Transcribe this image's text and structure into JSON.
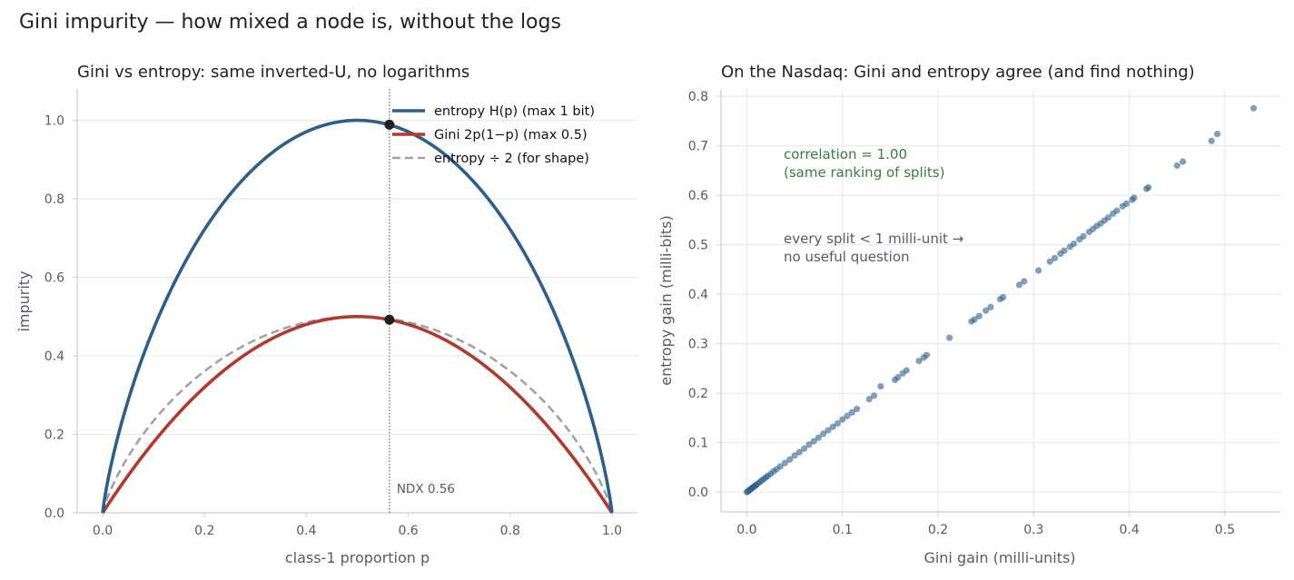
{
  "figure_title": "Gini impurity — how mixed a node is, without the logs",
  "chart_data": [
    {
      "type": "line",
      "title": "Gini vs entropy: same inverted-U, no logarithms",
      "xlabel": "class-1 proportion p",
      "ylabel": "impurity",
      "xlim": [
        -0.05,
        1.05
      ],
      "ylim": [
        0,
        1.08
      ],
      "xticks": [
        0.0,
        0.2,
        0.4,
        0.6,
        0.8,
        1.0
      ],
      "xtick_labels": [
        "0.0",
        "0.2",
        "0.4",
        "0.6",
        "0.8",
        "1.0"
      ],
      "yticks": [
        0.0,
        0.2,
        0.4,
        0.6,
        0.8,
        1.0
      ],
      "ytick_labels": [
        "0.0",
        "0.2",
        "0.4",
        "0.6",
        "0.8",
        "1.0"
      ],
      "grid": "horizontal",
      "legend_position": "top-right",
      "series": [
        {
          "name": "entropy H(p)  (max 1 bit)",
          "function": "entropy",
          "color": "#2d5f8a",
          "style": "solid",
          "x": [
            0.0,
            0.05,
            0.1,
            0.2,
            0.3,
            0.4,
            0.5,
            0.6,
            0.7,
            0.8,
            0.9,
            0.95,
            1.0
          ],
          "y": [
            0.0,
            0.286,
            0.469,
            0.722,
            0.881,
            0.971,
            1.0,
            0.971,
            0.881,
            0.722,
            0.469,
            0.286,
            0.0
          ]
        },
        {
          "name": "Gini 2p(1−p)  (max 0.5)",
          "function": "gini",
          "color": "#b03a2e",
          "style": "solid",
          "x": [
            0.0,
            0.05,
            0.1,
            0.2,
            0.3,
            0.4,
            0.5,
            0.6,
            0.7,
            0.8,
            0.9,
            0.95,
            1.0
          ],
          "y": [
            0.0,
            0.095,
            0.18,
            0.32,
            0.42,
            0.48,
            0.5,
            0.48,
            0.42,
            0.32,
            0.18,
            0.095,
            0.0
          ]
        },
        {
          "name": "entropy ÷ 2  (for shape)",
          "function": "half_entropy",
          "color": "#98a3b3",
          "style": "dashed",
          "x": [
            0.0,
            0.05,
            0.1,
            0.2,
            0.3,
            0.4,
            0.5,
            0.6,
            0.7,
            0.8,
            0.9,
            0.95,
            1.0
          ],
          "y": [
            0.0,
            0.143,
            0.234,
            0.361,
            0.441,
            0.485,
            0.5,
            0.485,
            0.441,
            0.361,
            0.234,
            0.143,
            0.0
          ]
        }
      ],
      "vline": {
        "x": 0.563,
        "label": "NDX 0.56"
      },
      "markers": [
        {
          "x": 0.563,
          "y": 0.989
        },
        {
          "x": 0.563,
          "y": 0.492
        }
      ]
    },
    {
      "type": "scatter",
      "title": "On the Nasdaq: Gini and entropy agree (and find nothing)",
      "xlabel": "Gini gain (milli-units)",
      "ylabel": "entropy gain (milli-bits)",
      "xlim": [
        -0.027,
        0.558
      ],
      "ylim": [
        -0.04,
        0.815
      ],
      "xticks": [
        0.0,
        0.1,
        0.2,
        0.3,
        0.4,
        0.5
      ],
      "xtick_labels": [
        "0.0",
        "0.1",
        "0.2",
        "0.3",
        "0.4",
        "0.5"
      ],
      "yticks": [
        0.0,
        0.1,
        0.2,
        0.3,
        0.4,
        0.5,
        0.6,
        0.7,
        0.8
      ],
      "ytick_labels": [
        "0.0",
        "0.1",
        "0.2",
        "0.3",
        "0.4",
        "0.5",
        "0.6",
        "0.7",
        "0.8"
      ],
      "grid": "both",
      "point_color": "#2d5f8a",
      "annotations": [
        {
          "lines": [
            "correlation = 1.00",
            "(same ranking of splits)"
          ],
          "color": "#3b7a45"
        },
        {
          "lines": [
            "every split < 1 milli-unit →",
            "no useful question"
          ],
          "color": "#555b66"
        }
      ],
      "x": [
        0.0,
        0.001,
        0.002,
        0.003,
        0.004,
        0.005,
        0.006,
        0.007,
        0.008,
        0.009,
        0.01,
        0.012,
        0.014,
        0.016,
        0.018,
        0.02,
        0.022,
        0.025,
        0.028,
        0.031,
        0.035,
        0.04,
        0.045,
        0.05,
        0.055,
        0.06,
        0.065,
        0.07,
        0.075,
        0.08,
        0.085,
        0.09,
        0.095,
        0.1,
        0.105,
        0.11,
        0.115,
        0.128,
        0.133,
        0.14,
        0.155,
        0.158,
        0.163,
        0.167,
        0.18,
        0.185,
        0.188,
        0.212,
        0.235,
        0.238,
        0.243,
        0.25,
        0.255,
        0.265,
        0.268,
        0.285,
        0.29,
        0.305,
        0.317,
        0.322,
        0.328,
        0.332,
        0.338,
        0.342,
        0.348,
        0.352,
        0.358,
        0.362,
        0.366,
        0.37,
        0.374,
        0.378,
        0.383,
        0.387,
        0.393,
        0.397,
        0.403,
        0.405,
        0.418,
        0.42,
        0.45,
        0.456,
        0.486,
        0.492,
        0.53
      ],
      "y": [
        0.0,
        0.0015,
        0.003,
        0.0045,
        0.006,
        0.0075,
        0.009,
        0.0105,
        0.012,
        0.0135,
        0.015,
        0.018,
        0.021,
        0.024,
        0.027,
        0.03,
        0.033,
        0.037,
        0.042,
        0.046,
        0.052,
        0.059,
        0.066,
        0.074,
        0.081,
        0.088,
        0.096,
        0.103,
        0.11,
        0.118,
        0.125,
        0.132,
        0.139,
        0.147,
        0.154,
        0.161,
        0.168,
        0.188,
        0.195,
        0.214,
        0.227,
        0.232,
        0.24,
        0.246,
        0.265,
        0.272,
        0.277,
        0.312,
        0.345,
        0.349,
        0.356,
        0.367,
        0.374,
        0.39,
        0.394,
        0.419,
        0.426,
        0.448,
        0.466,
        0.473,
        0.482,
        0.488,
        0.496,
        0.502,
        0.511,
        0.517,
        0.526,
        0.532,
        0.538,
        0.543,
        0.549,
        0.555,
        0.563,
        0.569,
        0.578,
        0.583,
        0.591,
        0.595,
        0.613,
        0.616,
        0.66,
        0.668,
        0.71,
        0.724,
        0.776
      ]
    }
  ]
}
